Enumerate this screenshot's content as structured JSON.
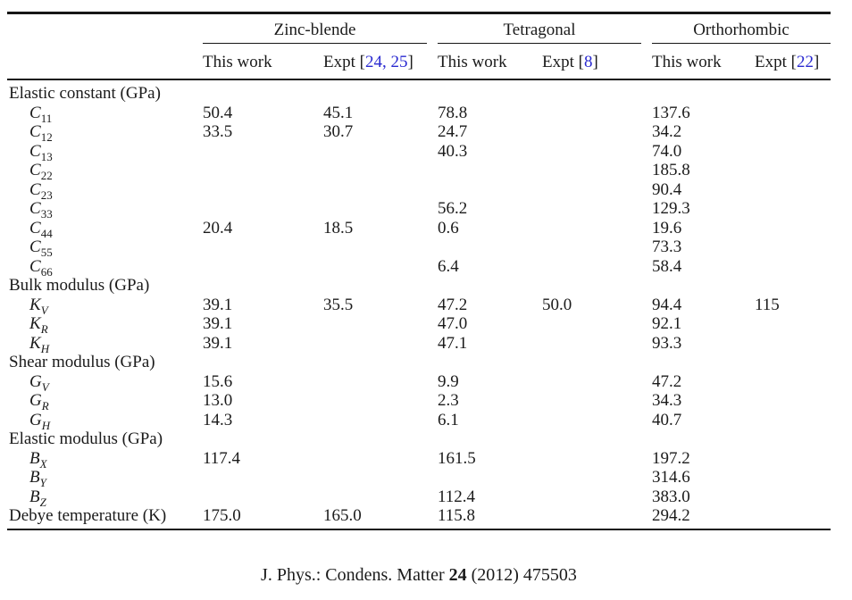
{
  "colors": {
    "text": "#1b1b1b",
    "rule": "#161616",
    "link": "#2a2ad0"
  },
  "table": {
    "groups": [
      {
        "label": "Zinc-blende",
        "this_work": "This work",
        "expt_prefix": "Expt [",
        "expt_refs": "24, 25",
        "expt_suffix": "]"
      },
      {
        "label": "Tetragonal",
        "this_work": "This work",
        "expt_prefix": "Expt [",
        "expt_refs": "8",
        "expt_suffix": "]"
      },
      {
        "label": "Orthorhombic",
        "this_work": "This work",
        "expt_prefix": "Expt [",
        "expt_refs": "22",
        "expt_suffix": "]"
      }
    ],
    "rows": [
      {
        "type": "section",
        "text": "Elastic constant (GPa)"
      },
      {
        "type": "data",
        "base": "C",
        "sub": "11",
        "cells": [
          "50.4",
          "45.1",
          "78.8",
          "",
          "137.6",
          ""
        ]
      },
      {
        "type": "data",
        "base": "C",
        "sub": "12",
        "cells": [
          "33.5",
          "30.7",
          "24.7",
          "",
          "34.2",
          ""
        ]
      },
      {
        "type": "data",
        "base": "C",
        "sub": "13",
        "cells": [
          "",
          "",
          "40.3",
          "",
          "74.0",
          ""
        ]
      },
      {
        "type": "data",
        "base": "C",
        "sub": "22",
        "cells": [
          "",
          "",
          "",
          "",
          "185.8",
          ""
        ]
      },
      {
        "type": "data",
        "base": "C",
        "sub": "23",
        "cells": [
          "",
          "",
          "",
          "",
          "90.4",
          ""
        ]
      },
      {
        "type": "data",
        "base": "C",
        "sub": "33",
        "cells": [
          "",
          "",
          "56.2",
          "",
          "129.3",
          ""
        ]
      },
      {
        "type": "data",
        "base": "C",
        "sub": "44",
        "cells": [
          "20.4",
          "18.5",
          "0.6",
          "",
          "19.6",
          ""
        ]
      },
      {
        "type": "data",
        "base": "C",
        "sub": "55",
        "cells": [
          "",
          "",
          "",
          "",
          "73.3",
          ""
        ]
      },
      {
        "type": "data",
        "base": "C",
        "sub": "66",
        "cells": [
          "",
          "",
          "6.4",
          "",
          "58.4",
          ""
        ]
      },
      {
        "type": "section",
        "text": "Bulk modulus (GPa)"
      },
      {
        "type": "data",
        "base": "K",
        "sub": "V",
        "subi": true,
        "cells": [
          "39.1",
          "35.5",
          "47.2",
          "50.0",
          "94.4",
          "115"
        ]
      },
      {
        "type": "data",
        "base": "K",
        "sub": "R",
        "subi": true,
        "cells": [
          "39.1",
          "",
          "47.0",
          "",
          "92.1",
          ""
        ]
      },
      {
        "type": "data",
        "base": "K",
        "sub": "H",
        "subi": true,
        "cells": [
          "39.1",
          "",
          "47.1",
          "",
          "93.3",
          ""
        ]
      },
      {
        "type": "section",
        "text": "Shear modulus (GPa)"
      },
      {
        "type": "data",
        "base": "G",
        "sub": "V",
        "subi": true,
        "cells": [
          "15.6",
          "",
          "9.9",
          "",
          "47.2",
          ""
        ]
      },
      {
        "type": "data",
        "base": "G",
        "sub": "R",
        "subi": true,
        "cells": [
          "13.0",
          "",
          "2.3",
          "",
          "34.3",
          ""
        ]
      },
      {
        "type": "data",
        "base": "G",
        "sub": "H",
        "subi": true,
        "cells": [
          "14.3",
          "",
          "6.1",
          "",
          "40.7",
          ""
        ]
      },
      {
        "type": "section",
        "text": "Elastic modulus (GPa)"
      },
      {
        "type": "data",
        "base": "B",
        "sub": "X",
        "subi": true,
        "cells": [
          "117.4",
          "",
          "161.5",
          "",
          "197.2",
          ""
        ]
      },
      {
        "type": "data",
        "base": "B",
        "sub": "Y",
        "subi": true,
        "cells": [
          "",
          "",
          "",
          "",
          "314.6",
          ""
        ]
      },
      {
        "type": "data",
        "base": "B",
        "sub": "Z",
        "subi": true,
        "cells": [
          "",
          "",
          "112.4",
          "",
          "383.0",
          ""
        ]
      },
      {
        "type": "data",
        "text": "Debye temperature (K)",
        "cells": [
          "175.0",
          "165.0",
          "115.8",
          "",
          "294.2",
          ""
        ]
      }
    ]
  },
  "footer": {
    "journal": "J. Phys.: Condens. Matter ",
    "volume": "24",
    "issue": " (2012) 475503"
  }
}
